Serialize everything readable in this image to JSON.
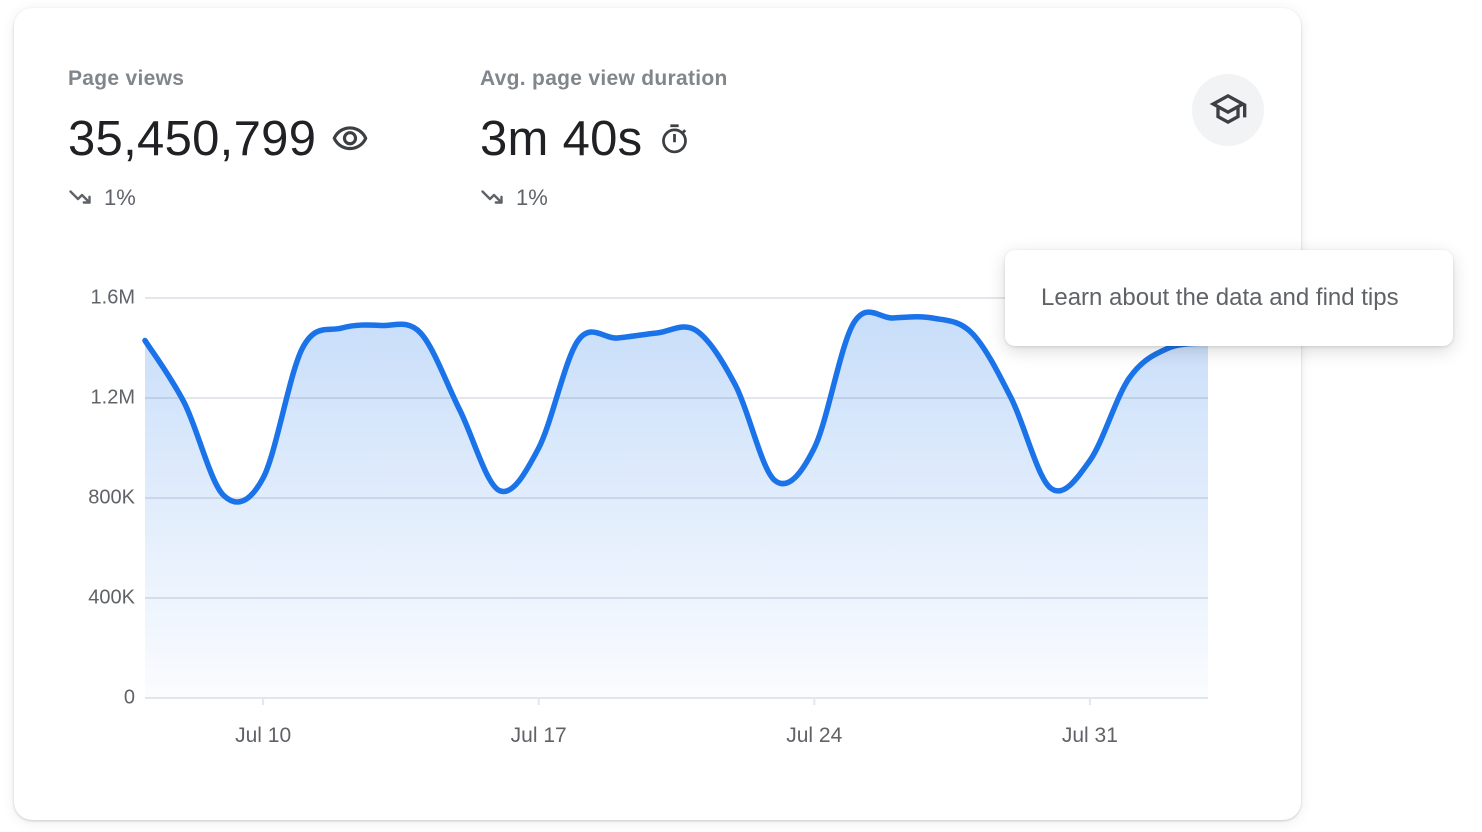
{
  "card": {
    "metrics": [
      {
        "label": "Page views",
        "value": "35,450,799",
        "value_icon": "eye-icon",
        "trend_icon": "trend-down-icon",
        "trend": "1%"
      },
      {
        "label": "Avg. page view duration",
        "value": "3m 40s",
        "value_icon": "stopwatch-icon",
        "trend_icon": "trend-down-icon",
        "trend": "1%"
      }
    ],
    "learn_button_icon": "graduation-cap-icon",
    "tooltip_text": "Learn about the data and find tips"
  },
  "colors": {
    "line": "#1a73e8",
    "area_top": "rgba(26,115,232,0.24)",
    "area_bottom": "rgba(26,115,232,0.02)",
    "grid": "#e3e6ea",
    "axis_label": "#5f6368",
    "value_text": "#202124",
    "label_text": "#80868b",
    "trend_text": "#5f6368",
    "tooltip_text": "#5f6368",
    "learn_button_bg": "#f1f3f4",
    "icon": "#3c4043"
  },
  "chart_data": {
    "type": "area",
    "series_name": "Page views",
    "x": [
      "Jul 7",
      "Jul 8",
      "Jul 9",
      "Jul 10",
      "Jul 11",
      "Jul 12",
      "Jul 13",
      "Jul 14",
      "Jul 15",
      "Jul 16",
      "Jul 17",
      "Jul 18",
      "Jul 19",
      "Jul 20",
      "Jul 21",
      "Jul 22",
      "Jul 23",
      "Jul 24",
      "Jul 25",
      "Jul 26",
      "Jul 27",
      "Jul 28",
      "Jul 29",
      "Jul 30",
      "Jul 31",
      "Aug 1",
      "Aug 2",
      "Aug 3"
    ],
    "values": [
      1430000,
      1180000,
      810000,
      880000,
      1400000,
      1480000,
      1490000,
      1460000,
      1150000,
      830000,
      1000000,
      1430000,
      1440000,
      1460000,
      1470000,
      1250000,
      870000,
      1000000,
      1500000,
      1520000,
      1520000,
      1460000,
      1200000,
      840000,
      950000,
      1280000,
      1400000,
      1420000
    ],
    "ylim": [
      0,
      1600000
    ],
    "y_ticks": [
      {
        "value": 1600000,
        "label": "1.6M"
      },
      {
        "value": 1200000,
        "label": "1.2M"
      },
      {
        "value": 800000,
        "label": "800K"
      },
      {
        "value": 400000,
        "label": "400K"
      },
      {
        "value": 0,
        "label": "0"
      }
    ],
    "x_ticks": [
      {
        "index": 3,
        "label": "Jul 10"
      },
      {
        "index": 10,
        "label": "Jul 17"
      },
      {
        "index": 17,
        "label": "Jul 24"
      },
      {
        "index": 24,
        "label": "Jul 31"
      }
    ],
    "grid": true,
    "legend": "none"
  }
}
